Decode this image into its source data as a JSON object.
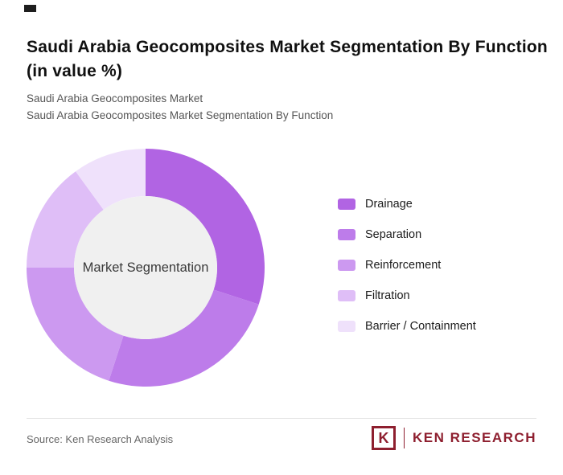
{
  "page": {
    "title": "Saudi Arabia Geocomposites Market Segmentation By Function (in value %)",
    "subtitle_lines": [
      "Saudi Arabia Geocomposites Market",
      "Saudi Arabia Geocomposites Market Segmentation By Function"
    ]
  },
  "chart_data": {
    "type": "pie",
    "donut": true,
    "center_label": "Market Segmentation",
    "categories": [
      "Drainage",
      "Separation",
      "Reinforcement",
      "Filtration",
      "Barrier / Containment"
    ],
    "values": [
      30,
      25,
      20,
      15,
      10
    ],
    "colors": [
      "#b164e3",
      "#bd7cea",
      "#cc99f0",
      "#dfbef7",
      "#efe1fb"
    ],
    "start_angle_deg": 0,
    "direction": "clockwise",
    "inner_radius_ratio": 0.6,
    "center_fill": "#f0f0f0",
    "legend_position": "right",
    "title": "Saudi Arabia Geocomposites Market Segmentation By Function (in value %)"
  },
  "footer": {
    "source": "Source: Ken Research Analysis",
    "logo_letter": "K",
    "logo_text": "KEN RESEARCH",
    "logo_color": "#8e1f2f"
  }
}
